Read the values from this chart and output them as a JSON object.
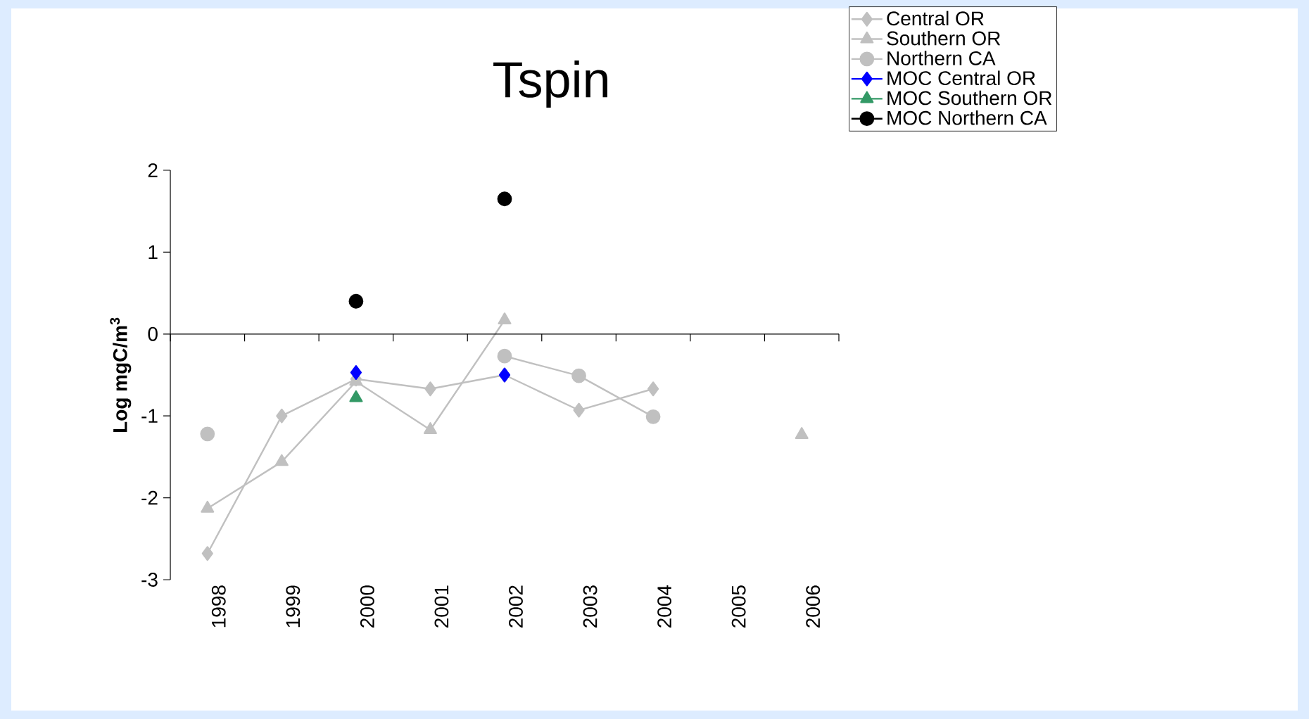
{
  "chart_data": {
    "type": "line",
    "title": "Tspin",
    "ylabel": "Log mgC/m$^{3}$",
    "categories": [
      "1998",
      "1999",
      "2000",
      "2001",
      "2002",
      "2003",
      "2004",
      "2005",
      "2006"
    ],
    "ylim": [
      -3,
      2
    ],
    "yticks": [
      -3,
      -2,
      -1,
      0,
      1,
      2
    ],
    "grid": false,
    "ref_lines": [
      {
        "axis": "y",
        "value": 0,
        "color": "#000000"
      }
    ],
    "legend": "top right",
    "line_style": "solid",
    "series": [
      {
        "name": "Central OR",
        "color": "#c0c0c0",
        "marker": "diamond",
        "values": [
          -2.68,
          -1.0,
          -0.55,
          -0.67,
          -0.5,
          -0.93,
          -0.67,
          null,
          null
        ]
      },
      {
        "name": "Southern OR",
        "color": "#c0c0c0",
        "marker": "triangle",
        "values": [
          -2.13,
          -1.56,
          -0.58,
          -1.17,
          0.17,
          null,
          null,
          null,
          -1.23
        ]
      },
      {
        "name": "Northern CA",
        "color": "#c0c0c0",
        "marker": "circle",
        "values": [
          -1.22,
          null,
          null,
          null,
          -0.27,
          -0.51,
          -1.01,
          null,
          null
        ]
      },
      {
        "name": "MOC Central OR",
        "type": "scatter",
        "color": "#0000ff",
        "marker": "diamond",
        "values": [
          null,
          null,
          -0.47,
          null,
          -0.5,
          null,
          null,
          null,
          null
        ]
      },
      {
        "name": "MOC Southern OR",
        "type": "scatter",
        "color": "#339966",
        "marker": "triangle",
        "values": [
          null,
          null,
          -0.78,
          null,
          null,
          null,
          null,
          null,
          null
        ]
      },
      {
        "name": "MOC Northern CA",
        "type": "scatter",
        "color": "#000000",
        "marker": "circle",
        "values": [
          null,
          null,
          0.4,
          null,
          1.65,
          null,
          null,
          null,
          null
        ]
      }
    ]
  }
}
